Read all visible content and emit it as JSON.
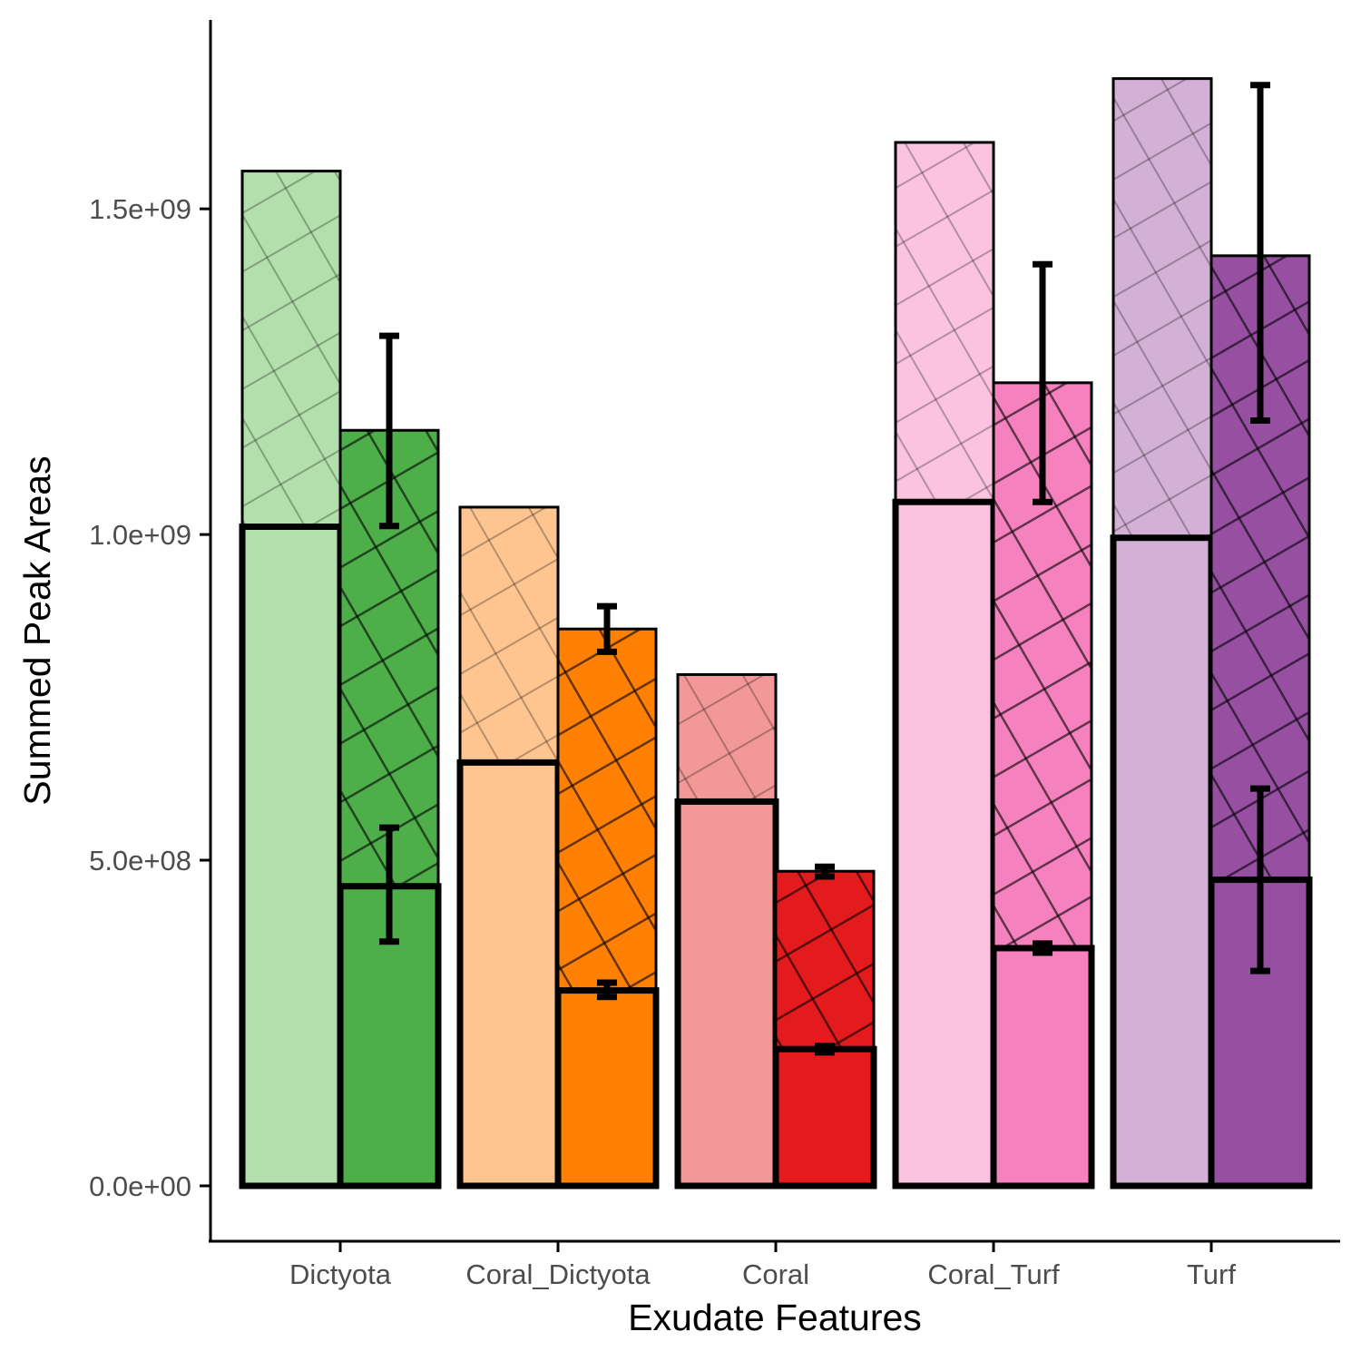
{
  "chart_data": {
    "type": "bar",
    "xlabel": "Exudate Features",
    "ylabel": "Summed Peak Areas",
    "categories": [
      "Dictyota",
      "Coral_Dictyota",
      "Coral",
      "Coral_Turf",
      "Turf"
    ],
    "ylim": [
      -85000000,
      1790000000
    ],
    "yticks": [
      0,
      500000000,
      1000000000,
      1500000000
    ],
    "ytick_labels": [
      "0.0e+00",
      "5.0e+08",
      "1.0e+09",
      "1.5e+09"
    ],
    "grid": false,
    "legend": "none",
    "series": [
      {
        "position": "left",
        "total_values": [
          1558000000,
          1042000000,
          785000000,
          1602000000,
          1700000000
        ],
        "lower_values": [
          1012000000,
          650000000,
          590000000,
          1050000000,
          995000000
        ],
        "colors": [
          "#b2dfab",
          "#fec590",
          "#f29898",
          "#fbc3e0",
          "#d3b0d6"
        ]
      },
      {
        "position": "right",
        "total_values": [
          1160000000,
          855000000,
          483000000,
          1233000000,
          1428000000
        ],
        "lower_values": [
          460000000,
          300000000,
          210000000,
          365000000,
          470000000
        ],
        "error_total": [
          [
            1013000000,
            1305000000
          ],
          [
            820000000,
            890000000
          ],
          [
            475000000,
            490000000
          ],
          [
            1050000000,
            1415000000
          ],
          [
            1175000000,
            1690000000
          ]
        ],
        "error_lower": [
          [
            375000000,
            550000000
          ],
          [
            290000000,
            312000000
          ],
          [
            205000000,
            215000000
          ],
          [
            358000000,
            372000000
          ],
          [
            330000000,
            610000000
          ]
        ],
        "colors": [
          "#4eae4a",
          "#ff8002",
          "#e31b1c",
          "#f681bf",
          "#974fa2"
        ]
      }
    ]
  }
}
